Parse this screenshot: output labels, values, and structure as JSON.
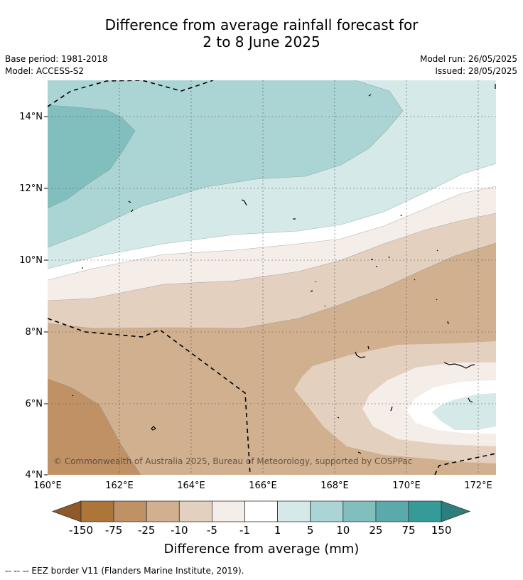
{
  "title": {
    "line1": "Difference from average rainfall forecast for",
    "line2": "2 to 8 June 2025"
  },
  "meta": {
    "base_period": "Base period: 1981-2018",
    "model": "Model: ACCESS-S2",
    "model_run": "Model run: 26/05/2025",
    "issued": "Issued: 28/05/2025"
  },
  "map": {
    "copyright": "© Commonwealth of Australia 2025, Bureau of Meteorology, supported by COSPPac",
    "lon_ticks": [
      "160°E",
      "162°E",
      "164°E",
      "166°E",
      "168°E",
      "170°E",
      "172°E"
    ],
    "lat_ticks": [
      "14°N",
      "12°N",
      "10°N",
      "8°N",
      "6°N",
      "4°N"
    ]
  },
  "legend": {
    "title": "Difference from average (mm)",
    "tick_labels": [
      "-150",
      "-75",
      "-25",
      "-10",
      "-5",
      "-1",
      "1",
      "5",
      "10",
      "25",
      "75",
      "150"
    ],
    "colors": [
      "#8e5a2c",
      "#ad7538",
      "#c09165",
      "#d1b08f",
      "#e4d0be",
      "#f4ede8",
      "#ffffff",
      "#d4e9e8",
      "#abd5d4",
      "#81bfbf",
      "#5aaaab",
      "#349b99",
      "#2d7f7e"
    ]
  },
  "footer": {
    "text": "-- -- -- EEZ border V11 (Flanders Marine Institute, 2019)."
  }
}
